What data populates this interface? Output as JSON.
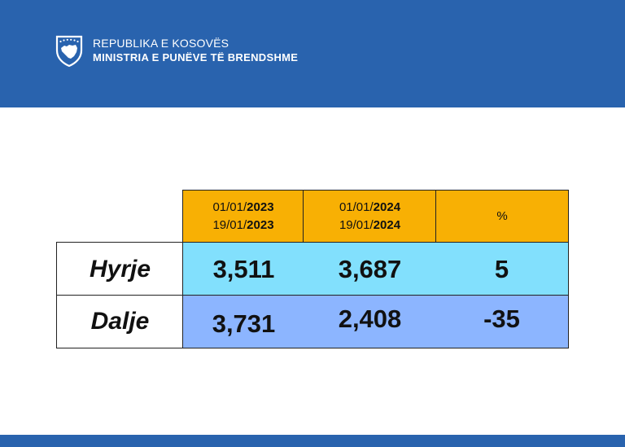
{
  "header": {
    "org_line1": "REPUBLIKA E KOSOVËS",
    "org_line2": "MINISTRIA E PUNËVE TË BRENDSHME",
    "logo_icon": "kosovo-coat-of-arms-icon",
    "background_color": "#2963ae"
  },
  "table": {
    "columns": [
      {
        "line1_prefix": "01/01/",
        "line1_year": "2023",
        "line2_prefix": "19/01/",
        "line2_year": "2023"
      },
      {
        "line1_prefix": "01/01/",
        "line1_year": "2024",
        "line2_prefix": "19/01/",
        "line2_year": "2024"
      },
      {
        "label": "%"
      }
    ],
    "rows": [
      {
        "label": "Hyrje",
        "values": [
          "3,511",
          "3,687",
          "5"
        ]
      },
      {
        "label": "Dalje",
        "values": [
          "3,731",
          "2,408",
          "-35"
        ]
      }
    ],
    "colors": {
      "header": "#f8b004",
      "row_hyrje": "#82e0fd",
      "row_dalje": "#8cb5ff"
    }
  }
}
